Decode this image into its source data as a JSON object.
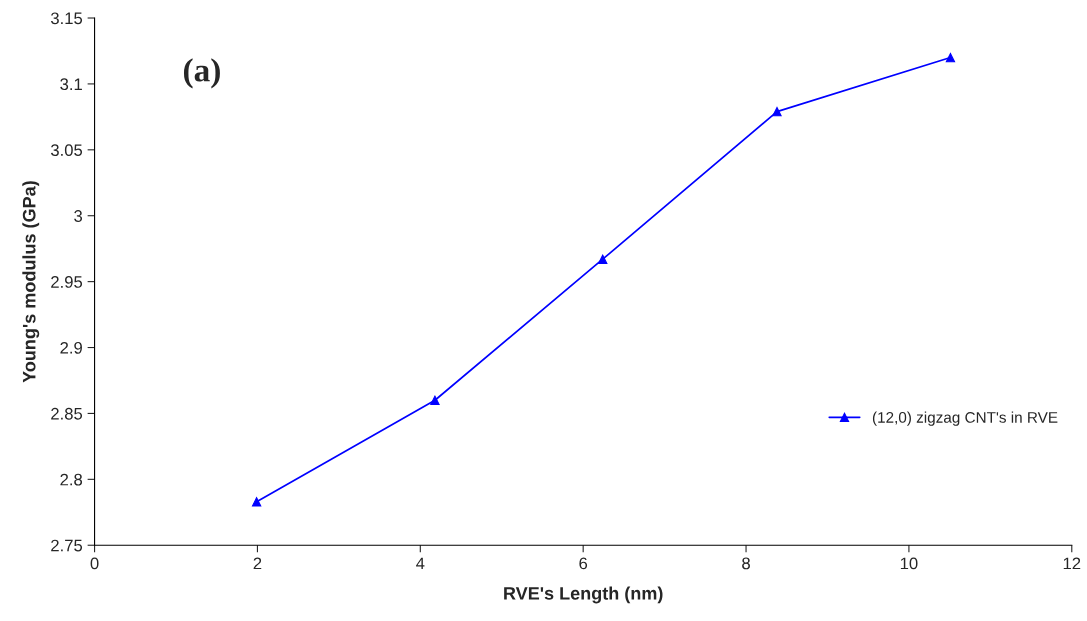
{
  "chart_data": {
    "type": "line",
    "xlabel": "RVE's Length (nm)",
    "ylabel": "Young's modulus (GPa)",
    "annotations": [
      "(a)"
    ],
    "series": [
      {
        "name": "(12,0) zigzag CNT's in RVE",
        "color": "#0000ff",
        "x": [
          1.99,
          4.18,
          6.24,
          8.38,
          10.51
        ],
        "values": [
          2.783,
          2.86,
          2.967,
          3.079,
          3.12
        ]
      }
    ],
    "xlim": [
      0,
      12
    ],
    "xticks": [
      0,
      2,
      4,
      6,
      8,
      10,
      12
    ],
    "ylim": [
      2.75,
      3.15
    ],
    "yticks": [
      {
        "value": 2.75,
        "label": "2.75"
      },
      {
        "value": 2.8,
        "label": "2.8"
      },
      {
        "value": 2.85,
        "label": "2.85"
      },
      {
        "value": 2.9,
        "label": "2.9"
      },
      {
        "value": 2.95,
        "label": "2.95"
      },
      {
        "value": 3.0,
        "label": "3"
      },
      {
        "value": 3.05,
        "label": "3.05"
      },
      {
        "value": 3.1,
        "label": "3.1"
      },
      {
        "value": 3.15,
        "label": "3.15"
      }
    ],
    "grid": false,
    "legend": "right",
    "marker": "triangle",
    "line_style": "solid"
  }
}
